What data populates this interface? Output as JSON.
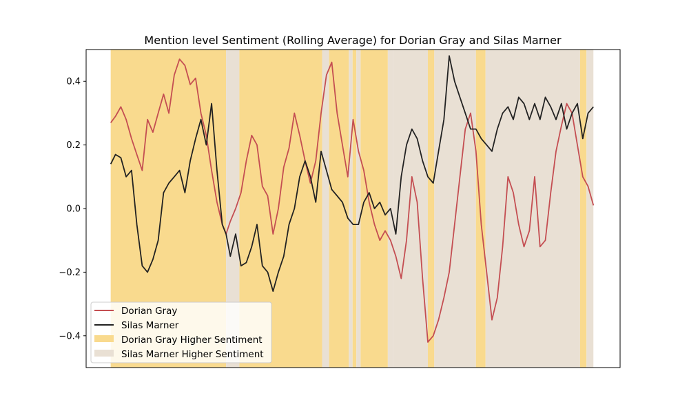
{
  "chart_data": {
    "type": "line",
    "title": "Mention level Sentiment (Rolling Average) for Dorian Gray and Silas Marner",
    "xlabel": "",
    "ylabel": "",
    "xlim": [
      0,
      1
    ],
    "ylim": [
      -0.5,
      0.5
    ],
    "x_ticks_shown": false,
    "y_ticks": [
      -0.4,
      -0.2,
      0.0,
      0.2,
      0.4
    ],
    "y_tick_labels": [
      "−0.4",
      "−0.2",
      "0.0",
      "0.2",
      "0.4"
    ],
    "grid": false,
    "legend_position": "lower-left",
    "legend": {
      "dorian_line": "Dorian Gray",
      "silas_line": "Silas Marner",
      "dorian_span": "Dorian Gray Higher Sentiment",
      "silas_span": "Silas Marner Higher Sentiment"
    },
    "colors": {
      "dorian": "#c44e52",
      "silas": "#222222",
      "dorian_higher": "#f9da8e",
      "silas_higher": "#e9e0d4"
    },
    "series": [
      {
        "name": "Dorian Gray",
        "key": "dorian",
        "x": [
          0.046,
          0.055,
          0.065,
          0.075,
          0.085,
          0.095,
          0.105,
          0.115,
          0.125,
          0.135,
          0.145,
          0.155,
          0.165,
          0.175,
          0.185,
          0.195,
          0.205,
          0.215,
          0.225,
          0.235,
          0.245,
          0.255,
          0.262,
          0.27,
          0.28,
          0.29,
          0.3,
          0.31,
          0.32,
          0.33,
          0.34,
          0.35,
          0.36,
          0.37,
          0.38,
          0.39,
          0.4,
          0.41,
          0.42,
          0.43,
          0.44,
          0.45,
          0.46,
          0.47,
          0.48,
          0.49,
          0.5,
          0.51,
          0.52,
          0.53,
          0.54,
          0.55,
          0.56,
          0.57,
          0.58,
          0.59,
          0.6,
          0.61,
          0.62,
          0.63,
          0.64,
          0.65,
          0.66,
          0.67,
          0.68,
          0.69,
          0.7,
          0.71,
          0.72,
          0.73,
          0.74,
          0.75,
          0.76,
          0.77,
          0.78,
          0.79,
          0.8,
          0.81,
          0.82,
          0.83,
          0.84,
          0.85,
          0.86,
          0.87,
          0.88,
          0.89,
          0.9,
          0.91,
          0.92,
          0.93,
          0.94,
          0.95
        ],
        "y": [
          0.27,
          0.29,
          0.32,
          0.28,
          0.22,
          0.17,
          0.12,
          0.28,
          0.24,
          0.3,
          0.36,
          0.3,
          0.42,
          0.47,
          0.45,
          0.39,
          0.41,
          0.3,
          0.23,
          0.12,
          0.02,
          -0.05,
          -0.08,
          -0.04,
          0.0,
          0.05,
          0.15,
          0.23,
          0.2,
          0.07,
          0.04,
          -0.08,
          0.0,
          0.13,
          0.19,
          0.3,
          0.23,
          0.15,
          0.08,
          0.15,
          0.3,
          0.42,
          0.46,
          0.3,
          0.2,
          0.1,
          0.28,
          0.18,
          0.12,
          0.02,
          -0.05,
          -0.1,
          -0.07,
          -0.1,
          -0.15,
          -0.22,
          -0.1,
          0.1,
          0.02,
          -0.22,
          -0.42,
          -0.4,
          -0.35,
          -0.28,
          -0.2,
          -0.05,
          0.1,
          0.25,
          0.3,
          0.18,
          -0.05,
          -0.2,
          -0.35,
          -0.28,
          -0.12,
          0.1,
          0.05,
          -0.05,
          -0.12,
          -0.07,
          0.1,
          -0.12,
          -0.1,
          0.05,
          0.18,
          0.26,
          0.33,
          0.3,
          0.2,
          0.1,
          0.07,
          0.01
        ]
      },
      {
        "name": "Silas Marner",
        "key": "silas",
        "x": [
          0.046,
          0.055,
          0.065,
          0.075,
          0.085,
          0.095,
          0.105,
          0.115,
          0.125,
          0.135,
          0.145,
          0.155,
          0.165,
          0.175,
          0.185,
          0.195,
          0.205,
          0.215,
          0.225,
          0.235,
          0.245,
          0.255,
          0.262,
          0.27,
          0.28,
          0.29,
          0.3,
          0.31,
          0.32,
          0.33,
          0.34,
          0.35,
          0.36,
          0.37,
          0.38,
          0.39,
          0.4,
          0.41,
          0.42,
          0.43,
          0.44,
          0.45,
          0.46,
          0.47,
          0.48,
          0.49,
          0.5,
          0.51,
          0.52,
          0.53,
          0.54,
          0.55,
          0.56,
          0.57,
          0.58,
          0.59,
          0.6,
          0.61,
          0.62,
          0.63,
          0.64,
          0.65,
          0.66,
          0.67,
          0.68,
          0.69,
          0.7,
          0.71,
          0.72,
          0.73,
          0.74,
          0.75,
          0.76,
          0.77,
          0.78,
          0.79,
          0.8,
          0.81,
          0.82,
          0.83,
          0.84,
          0.85,
          0.86,
          0.87,
          0.88,
          0.89,
          0.9,
          0.91,
          0.92,
          0.93,
          0.94,
          0.95
        ],
        "y": [
          0.14,
          0.17,
          0.16,
          0.1,
          0.12,
          -0.05,
          -0.18,
          -0.2,
          -0.16,
          -0.1,
          0.05,
          0.08,
          0.1,
          0.12,
          0.05,
          0.15,
          0.22,
          0.28,
          0.2,
          0.33,
          0.12,
          -0.05,
          -0.08,
          -0.15,
          -0.08,
          -0.18,
          -0.17,
          -0.12,
          -0.05,
          -0.18,
          -0.2,
          -0.26,
          -0.2,
          -0.15,
          -0.05,
          0.0,
          0.1,
          0.15,
          0.1,
          0.02,
          0.18,
          0.12,
          0.06,
          0.04,
          0.02,
          -0.03,
          -0.05,
          -0.05,
          0.02,
          0.05,
          0.0,
          0.02,
          -0.02,
          0.0,
          -0.08,
          0.1,
          0.2,
          0.25,
          0.22,
          0.15,
          0.1,
          0.08,
          0.18,
          0.28,
          0.48,
          0.4,
          0.35,
          0.3,
          0.25,
          0.25,
          0.22,
          0.2,
          0.18,
          0.25,
          0.3,
          0.32,
          0.28,
          0.35,
          0.33,
          0.28,
          0.33,
          0.28,
          0.35,
          0.32,
          0.28,
          0.33,
          0.25,
          0.3,
          0.33,
          0.22,
          0.3,
          0.32
        ]
      }
    ],
    "spans": [
      {
        "x0": 0.046,
        "x1": 0.262,
        "who": "dorian"
      },
      {
        "x0": 0.262,
        "x1": 0.287,
        "who": "silas"
      },
      {
        "x0": 0.287,
        "x1": 0.442,
        "who": "dorian"
      },
      {
        "x0": 0.442,
        "x1": 0.455,
        "who": "silas"
      },
      {
        "x0": 0.455,
        "x1": 0.492,
        "who": "dorian"
      },
      {
        "x0": 0.492,
        "x1": 0.499,
        "who": "silas"
      },
      {
        "x0": 0.499,
        "x1": 0.506,
        "who": "dorian"
      },
      {
        "x0": 0.506,
        "x1": 0.514,
        "who": "silas"
      },
      {
        "x0": 0.514,
        "x1": 0.565,
        "who": "dorian"
      },
      {
        "x0": 0.565,
        "x1": 0.575,
        "who": "silas"
      },
      {
        "x0": 0.575,
        "x1": 0.64,
        "who": "silas"
      },
      {
        "x0": 0.64,
        "x1": 0.652,
        "who": "dorian"
      },
      {
        "x0": 0.652,
        "x1": 0.73,
        "who": "silas"
      },
      {
        "x0": 0.73,
        "x1": 0.748,
        "who": "dorian"
      },
      {
        "x0": 0.748,
        "x1": 0.925,
        "who": "silas"
      },
      {
        "x0": 0.925,
        "x1": 0.937,
        "who": "dorian"
      },
      {
        "x0": 0.937,
        "x1": 0.95,
        "who": "silas"
      }
    ]
  }
}
